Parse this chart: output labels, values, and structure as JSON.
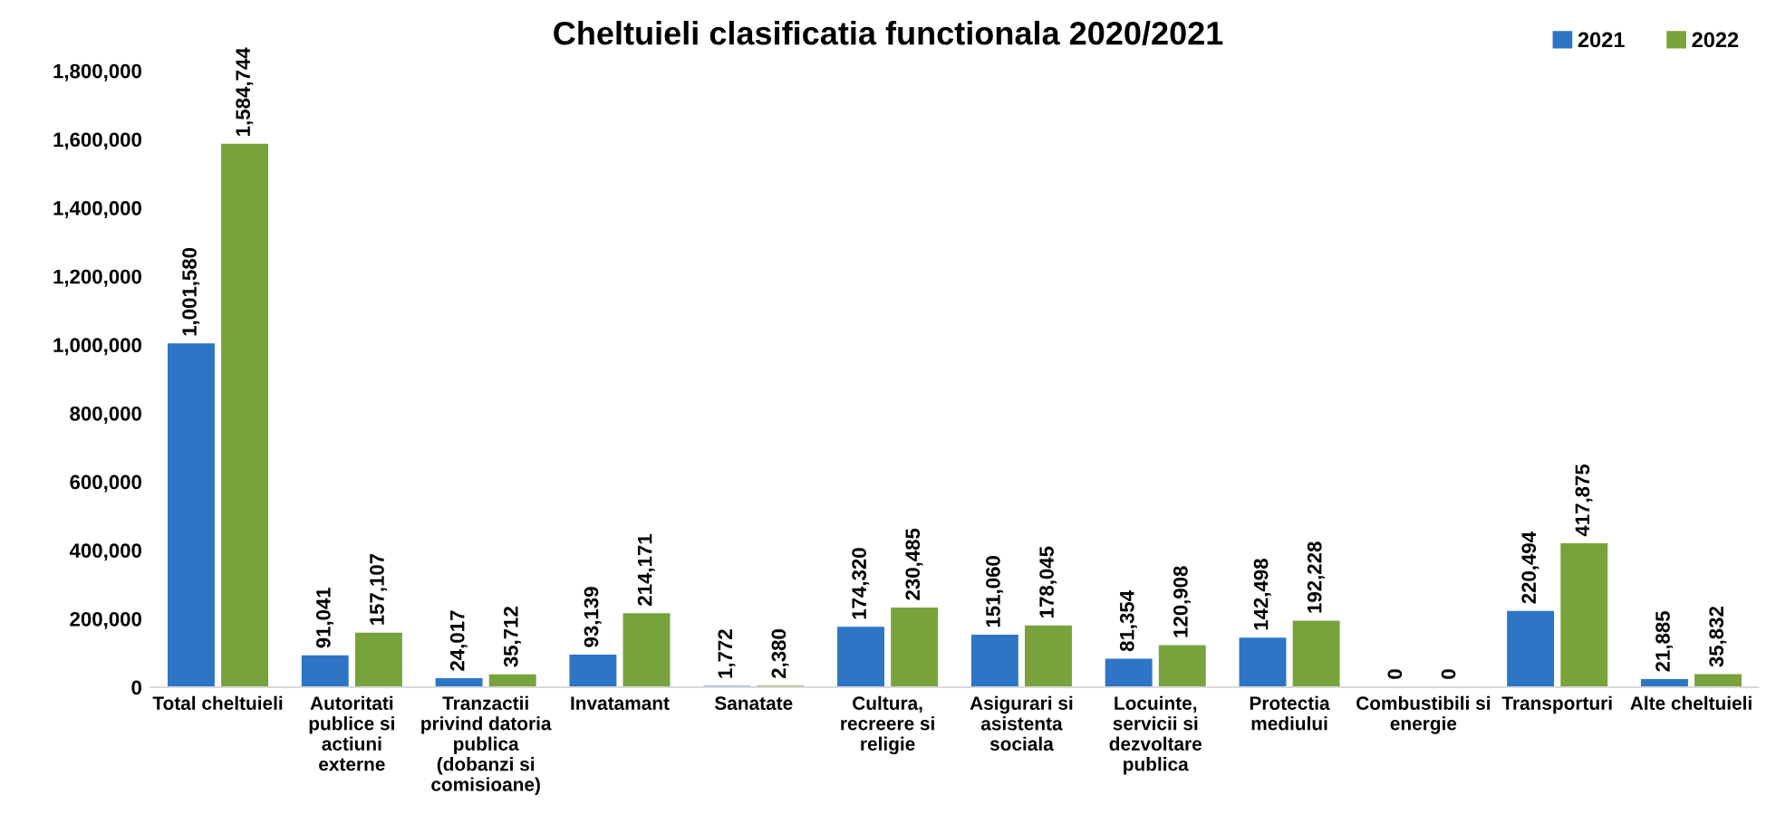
{
  "chart_data": {
    "type": "bar",
    "title": "Cheltuieli clasificatia functionala 2020/2021",
    "categories": [
      "Total cheltuieli",
      "Autoritati\npublice si\nactiuni\nexterne",
      "Tranzactii\nprivind datoria\npublica\n(dobanzi si\ncomisioane)",
      "Invatamant",
      "Sanatate",
      "Cultura,\nrecreere si\nreligie",
      "Asigurari si\nasistenta\nsociala",
      "Locuinte,\nservicii si\ndezvoltare\npublica",
      "Protectia\nmediului",
      "Combustibili si\nenergie",
      "Transporturi",
      "Alte cheltuieli"
    ],
    "series": [
      {
        "name": "2021",
        "color": "#2e75c6",
        "values": [
          1001580,
          91041,
          24017,
          93139,
          1772,
          174320,
          151060,
          81354,
          142498,
          0,
          220494,
          21885
        ],
        "value_labels": [
          "1,001,580",
          "91,041",
          "24,017",
          "93,139",
          "1,772",
          "174,320",
          "151,060",
          "81,354",
          "142,498",
          "0",
          "220,494",
          "21,885"
        ]
      },
      {
        "name": "2022",
        "color": "#78a33c",
        "values": [
          1584744,
          157107,
          35712,
          214171,
          2380,
          230485,
          178045,
          120908,
          192228,
          0,
          417875,
          35832
        ],
        "value_labels": [
          "1,584,744",
          "157,107",
          "35,712",
          "214,171",
          "2,380",
          "230,485",
          "178,045",
          "120,908",
          "192,228",
          "0",
          "417,875",
          "35,832"
        ]
      }
    ],
    "ylim": [
      0,
      1800000
    ],
    "yticks": [
      {
        "value": 0,
        "label": "0"
      },
      {
        "value": 200000,
        "label": "200,000"
      },
      {
        "value": 400000,
        "label": "400,000"
      },
      {
        "value": 600000,
        "label": "600,000"
      },
      {
        "value": 800000,
        "label": "800,000"
      },
      {
        "value": 1000000,
        "label": "1,000,000"
      },
      {
        "value": 1200000,
        "label": "1,200,000"
      },
      {
        "value": 1400000,
        "label": "1,400,000"
      },
      {
        "value": 1600000,
        "label": "1,600,000"
      },
      {
        "value": 1800000,
        "label": "1,800,000"
      }
    ],
    "grid": false,
    "legend": "top right"
  }
}
